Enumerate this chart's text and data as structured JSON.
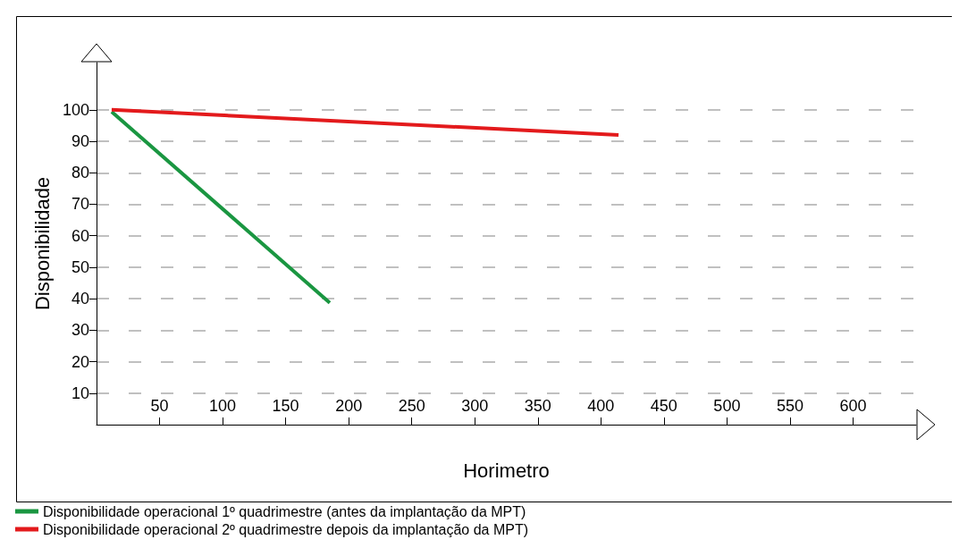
{
  "chart_data": {
    "type": "line",
    "xlabel": "Horimetro",
    "ylabel": "Disponibilidade",
    "xlim": [
      0,
      650
    ],
    "ylim": [
      0,
      115
    ],
    "xticks": [
      50,
      100,
      150,
      200,
      250,
      300,
      350,
      400,
      450,
      500,
      550,
      600
    ],
    "yticks": [
      10,
      20,
      30,
      40,
      50,
      60,
      70,
      80,
      90,
      100
    ],
    "grid": "y",
    "legend": "bottom left",
    "marker": "none",
    "line_style": "solid",
    "series": [
      {
        "name": "Disponibilidade operacional 1º quadrimestre (antes da implantação da MPT)",
        "color": "#1a9641",
        "x": [
          12,
          185
        ],
        "values": [
          99.4,
          38.7
        ]
      },
      {
        "name": "Disponibilidade operacional 2º quadrimestre depois da implantação da MPT)",
        "color": "#e31a1c",
        "x": [
          12,
          414
        ],
        "values": [
          100,
          92
        ]
      }
    ]
  }
}
